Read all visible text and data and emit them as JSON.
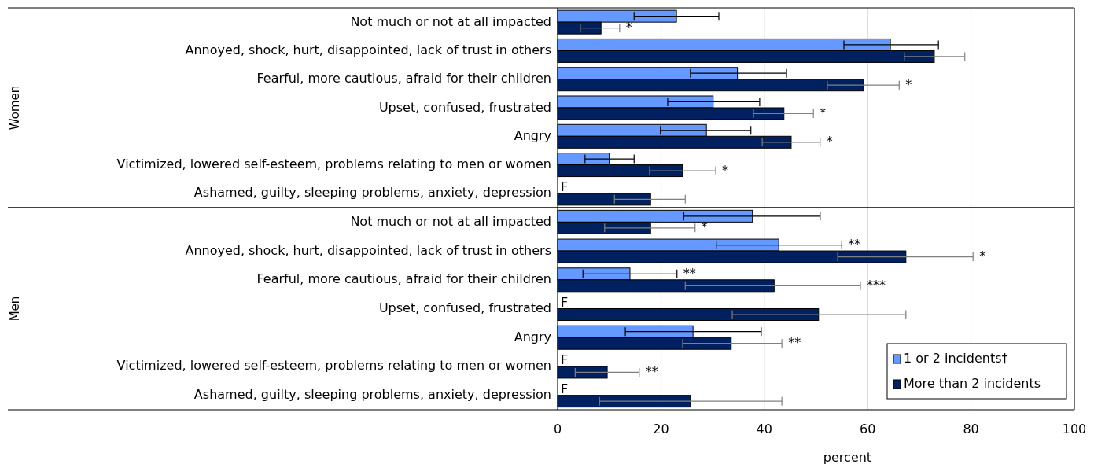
{
  "chart_data": [
    {
      "type": "bar",
      "orientation": "horizontal",
      "ylabel": "Women",
      "categories": [
        "Not much or not at all impacted",
        "Annoyed, shock, hurt, disappointed, lack of trust in others",
        "Fearful, more cautious, afraid for their children",
        "Upset, confused, frustrated",
        "Angry",
        "Victimized, lowered self-esteem, problems relating to men or women",
        "Ashamed, guilty, sleeping problems, anxiety, depression"
      ],
      "series": [
        {
          "color": "#6699ff",
          "values": [
            23.0,
            64.4,
            34.8,
            30.1,
            28.8,
            10.0,
            null
          ],
          "errors": [
            [
              14.8,
              31.2
            ],
            [
              55.4,
              73.7
            ],
            [
              25.7,
              44.3
            ],
            [
              21.3,
              39.1
            ],
            [
              19.9,
              37.4
            ],
            [
              5.3,
              14.8
            ],
            null
          ]
        },
        {
          "color": "#002060",
          "values": [
            8.4,
            72.9,
            59.2,
            43.8,
            45.2,
            24.2,
            18.0
          ],
          "errors": [
            [
              4.4,
              12.0
            ],
            [
              67.1,
              78.8
            ],
            [
              52.2,
              66.1
            ],
            [
              37.9,
              49.5
            ],
            [
              39.6,
              50.8
            ],
            [
              17.8,
              30.6
            ],
            [
              11.0,
              24.7
            ]
          ]
        }
      ],
      "annotations": [
        {
          "text": "*",
          "x": 12.0,
          "y": "Not much or not at all impacted"
        },
        {
          "text": "*",
          "x": 66.1,
          "y": "Fearful, more cautious, afraid for their children"
        },
        {
          "text": "*",
          "x": 49.5,
          "y": "Upset, confused, frustrated"
        },
        {
          "text": "*",
          "x": 50.8,
          "y": "Angry"
        },
        {
          "text": "*",
          "x": 30.6,
          "y": "Victimized, lowered self-esteem, problems relating to men or women"
        },
        {
          "text": "F",
          "x": 0,
          "y": "Ashamed, guilty, sleeping problems, anxiety, depression"
        }
      ],
      "xlim": [
        0,
        100
      ],
      "xticks": [
        0,
        20,
        40,
        60,
        80,
        100
      ],
      "grid": "x",
      "tick_labels": "y",
      "legend": false
    },
    {
      "type": "bar",
      "orientation": "horizontal",
      "ylabel": "Men",
      "xlabel": "percent",
      "categories": [
        "Not much or not at all impacted",
        "Annoyed, shock, hurt, disappointed, lack of trust in others",
        "Fearful, more cautious, afraid for their children",
        "Upset, confused, frustrated",
        "Angry",
        "Victimized, lowered self-esteem, problems relating to men or women",
        "Ashamed, guilty, sleeping problems, anxiety, depression"
      ],
      "series": [
        {
          "name": "1 or 2 incidents†",
          "color": "#6699ff",
          "values": [
            37.7,
            42.8,
            14.0,
            null,
            26.2,
            null,
            null
          ],
          "errors": [
            [
              24.4,
              50.8
            ],
            [
              30.7,
              55.0
            ],
            [
              4.9,
              23.1
            ],
            null,
            [
              13.1,
              39.4
            ],
            null,
            null
          ]
        },
        {
          "name": "More than 2 incidents",
          "color": "#002060",
          "values": [
            18.0,
            67.4,
            41.9,
            50.5,
            33.6,
            9.6,
            25.7
          ],
          "errors": [
            [
              9.1,
              26.6
            ],
            [
              54.2,
              80.4
            ],
            [
              24.7,
              58.6
            ],
            [
              33.8,
              67.4
            ],
            [
              24.2,
              43.4
            ],
            [
              3.4,
              15.8
            ],
            [
              8.1,
              43.4
            ]
          ]
        }
      ],
      "annotations": [
        {
          "text": "*",
          "x": 26.6,
          "y": "Not much or not at all impacted"
        },
        {
          "text": "**",
          "x": 55.0,
          "y": "Annoyed, shock, hurt, disappointed, lack of trust in others"
        },
        {
          "text": "*",
          "x": 80.4,
          "y": "Annoyed, shock, hurt, disappointed, lack of trust in others"
        },
        {
          "text": "**",
          "x": 23.1,
          "y": "Fearful, more cautious, afraid for their children"
        },
        {
          "text": "***",
          "x": 58.6,
          "y": "Fearful, more cautious, afraid for their children"
        },
        {
          "text": "F",
          "x": 0,
          "y": "Upset, confused, frustrated"
        },
        {
          "text": "**",
          "x": 43.4,
          "y": "Angry"
        },
        {
          "text": "F",
          "x": 0,
          "y": "Victimized, lowered self-esteem, problems relating to men or women"
        },
        {
          "text": "**",
          "x": 15.8,
          "y": "Victimized, lowered self-esteem, problems relating to men or women"
        },
        {
          "text": "F",
          "x": 0,
          "y": "Ashamed, guilty, sleeping problems, anxiety, depression"
        }
      ],
      "xlim": [
        0,
        100
      ],
      "xticks": [
        0,
        20,
        40,
        60,
        80,
        100
      ],
      "grid": "x",
      "legend": "bottom right"
    }
  ]
}
